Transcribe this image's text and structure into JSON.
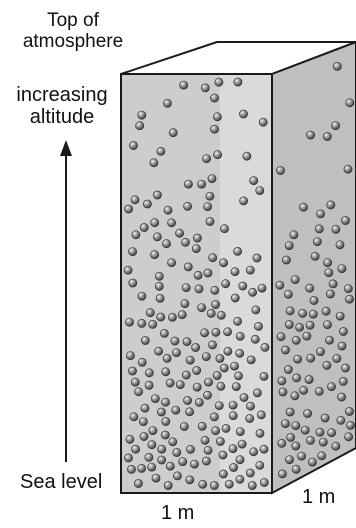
{
  "labels": {
    "top_line1": "Top of",
    "top_line2": "atmosphere",
    "altitude_line1": "increasing",
    "altitude_line2": "altitude",
    "sea_level": "Sea level",
    "front_width": "1 m",
    "side_depth": "1 m"
  },
  "colors": {
    "front_face": "#cdcdcd",
    "front_highlight": "#dcdcdc",
    "side_face": "#bfbfbf",
    "top_face": "#ffffff",
    "outline": "#1a1a1a",
    "molecule": "#6e6e6e"
  },
  "icons": {
    "molecule": "gas-molecule-icon",
    "arrow": "arrow-up-icon"
  }
}
